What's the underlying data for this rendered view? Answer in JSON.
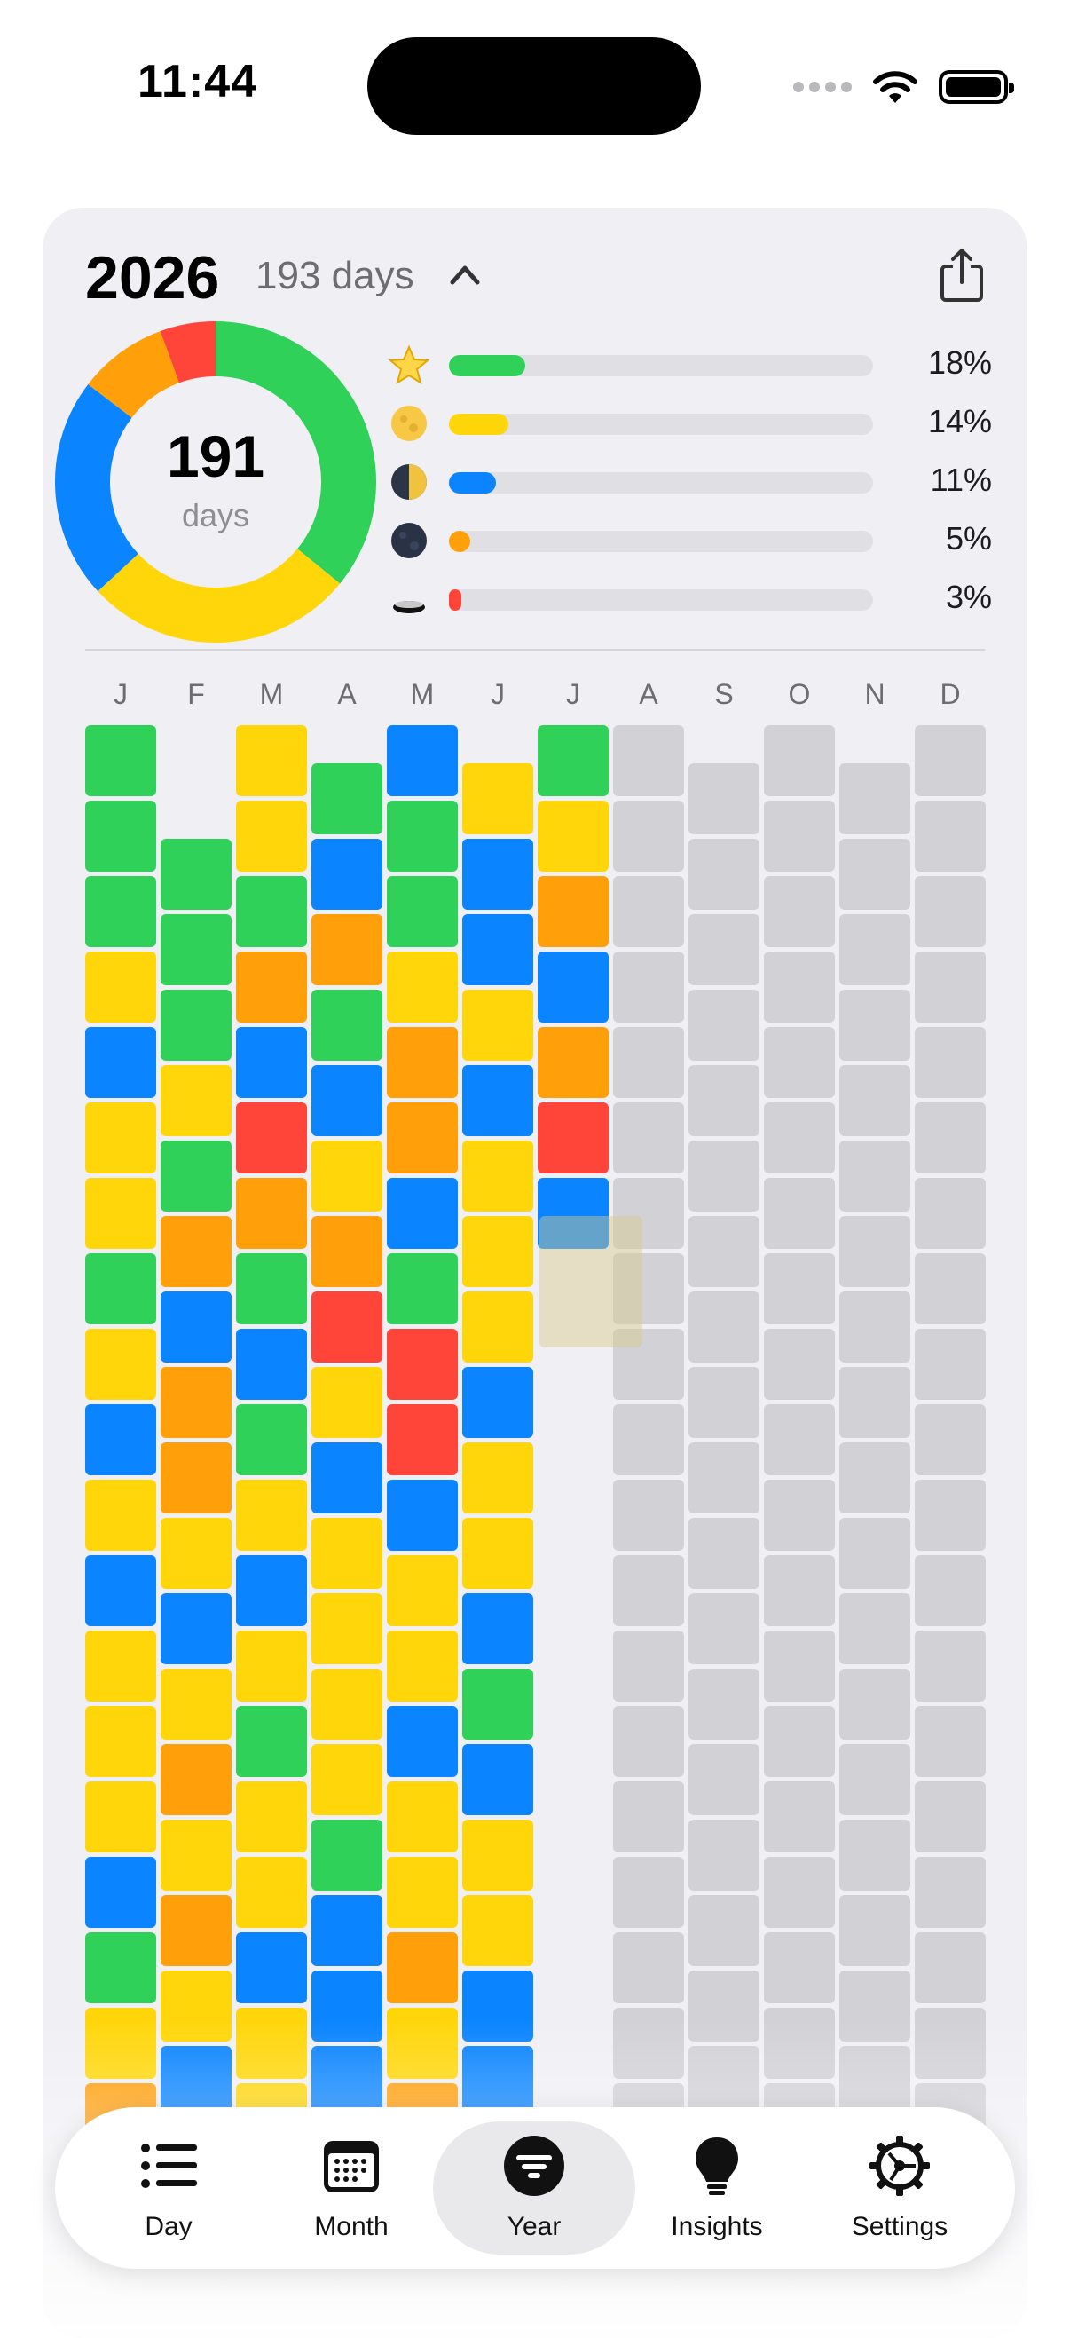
{
  "status_bar": {
    "time": "11:44"
  },
  "header": {
    "year": "2026",
    "days_label": "193 days"
  },
  "donut": {
    "number": "191",
    "label": "days",
    "segments": [
      {
        "mood": "star",
        "fraction": 0.359,
        "color": "#30d158"
      },
      {
        "mood": "full",
        "fraction": 0.272,
        "color": "#ffd60a"
      },
      {
        "mood": "half",
        "fraction": 0.223,
        "color": "#0a84ff"
      },
      {
        "mood": "new",
        "fraction": 0.09,
        "color": "#ff9f0a"
      },
      {
        "mood": "dark",
        "fraction": 0.056,
        "color": "#ff453a"
      }
    ]
  },
  "stats": [
    {
      "icon": "star-icon",
      "percent_label": "18%",
      "fill": 0.18,
      "color": "#30d158"
    },
    {
      "icon": "full-moon-icon",
      "percent_label": "14%",
      "fill": 0.14,
      "color": "#ffd60a"
    },
    {
      "icon": "half-moon-icon",
      "percent_label": "11%",
      "fill": 0.11,
      "color": "#0a84ff"
    },
    {
      "icon": "new-moon-icon",
      "percent_label": "5%",
      "fill": 0.05,
      "color": "#ff9f0a"
    },
    {
      "icon": "eclipse-icon",
      "percent_label": "3%",
      "fill": 0.03,
      "color": "#ff453a"
    }
  ],
  "months": [
    "J",
    "F",
    "M",
    "A",
    "M",
    "J",
    "J",
    "A",
    "S",
    "O",
    "N",
    "D"
  ],
  "color_key": {
    "G": "#30d158",
    "Y": "#ffd60a",
    "B": "#0a84ff",
    "O": "#ff9f0a",
    "R": "#ff453a",
    "X": "#d1d1d6"
  },
  "calendar": [
    "GGGYBYYGYBYBYYYBGYO",
    "GGGYGOBOOYBYOYOYBGL",
    "YYGOBROGBGYBYGYYBYY",
    "GBOGBYORYBYYYYGBBBB",
    "BGGYOOBGRRBYYBYYOYO",
    "YBBYBYYYBYYBGBYYBBB",
    "GYOBORB",
    "XXXXXXXXXXXXXXXXXXX",
    "XXXXXXXXXXXXXXXXXXX",
    "XXXXXXXXXXXXXXXXXXX",
    "XXXXXXXXXXXXXXXXXXX",
    "XXXXXXXXXXXXXXXXXXX"
  ],
  "tabs": [
    {
      "label": "Day",
      "icon": "list-icon"
    },
    {
      "label": "Month",
      "icon": "calendar-icon"
    },
    {
      "label": "Year",
      "icon": "year-filter-icon",
      "active": true
    },
    {
      "label": "Insights",
      "icon": "lightbulb-icon"
    },
    {
      "label": "Settings",
      "icon": "gear-icon"
    }
  ]
}
